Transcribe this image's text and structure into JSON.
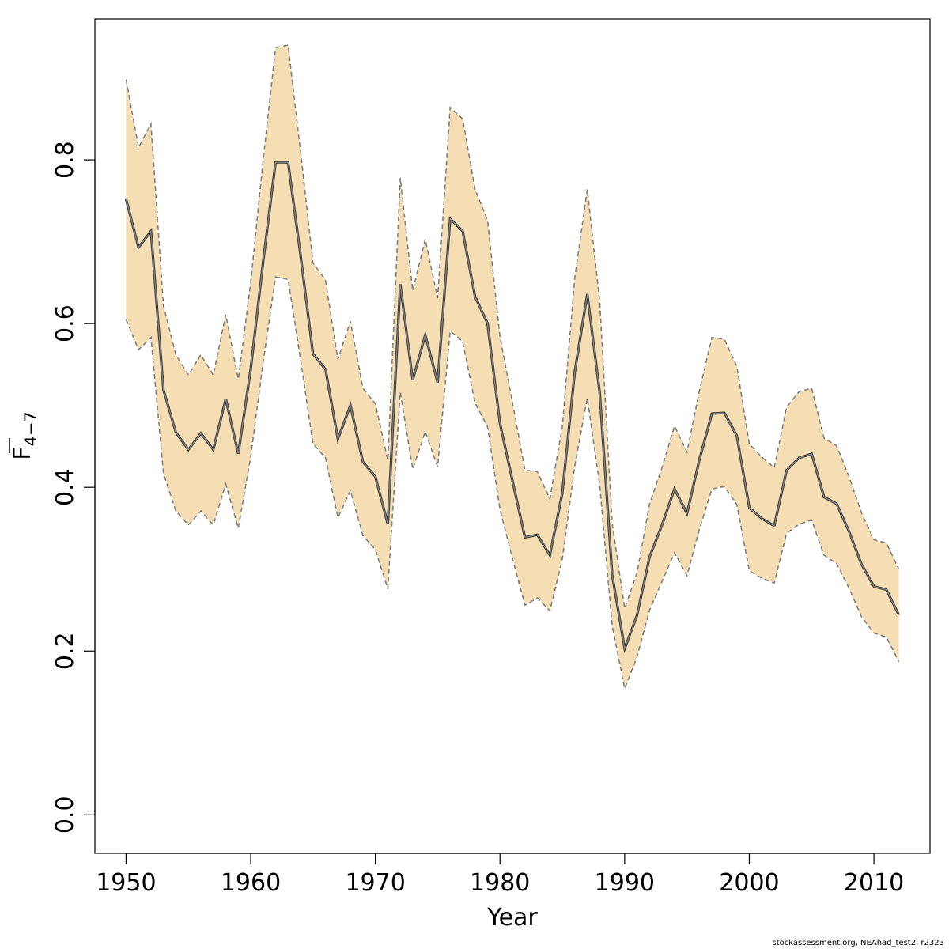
{
  "chart_data": {
    "type": "line",
    "xlabel": "Year",
    "ylabel": {
      "main": "F",
      "sub": "4−7"
    },
    "xlim": [
      1947.5,
      2014.5
    ],
    "ylim": [
      -0.047,
      0.972
    ],
    "xticks": [
      1950,
      1960,
      1970,
      1980,
      1990,
      2000,
      2010
    ],
    "yticks": [
      0.0,
      0.2,
      0.4,
      0.6,
      0.8
    ],
    "grid": false,
    "colors": {
      "band": "#f5deb3",
      "line": "#404040",
      "bounds": "#808080"
    },
    "x": [
      1950,
      1951,
      1952,
      1953,
      1954,
      1955,
      1956,
      1957,
      1958,
      1959,
      1960,
      1961,
      1962,
      1963,
      1964,
      1965,
      1966,
      1967,
      1968,
      1969,
      1970,
      1971,
      1972,
      1973,
      1974,
      1975,
      1976,
      1977,
      1978,
      1979,
      1980,
      1981,
      1982,
      1983,
      1984,
      1985,
      1986,
      1987,
      1988,
      1989,
      1990,
      1991,
      1992,
      1993,
      1994,
      1995,
      1996,
      1997,
      1998,
      1999,
      2000,
      2001,
      2002,
      2003,
      2004,
      2005,
      2006,
      2007,
      2008,
      2009,
      2010,
      2011,
      2012
    ],
    "series": [
      {
        "role": "estimate",
        "values": [
          0.752,
          0.693,
          0.713,
          0.519,
          0.467,
          0.446,
          0.466,
          0.446,
          0.508,
          0.441,
          0.544,
          0.676,
          0.797,
          0.797,
          0.683,
          0.563,
          0.544,
          0.459,
          0.5,
          0.431,
          0.413,
          0.355,
          0.648,
          0.531,
          0.586,
          0.528,
          0.728,
          0.713,
          0.633,
          0.6,
          0.478,
          0.408,
          0.339,
          0.342,
          0.317,
          0.393,
          0.541,
          0.636,
          0.516,
          0.293,
          0.203,
          0.244,
          0.315,
          0.354,
          0.398,
          0.368,
          0.434,
          0.49,
          0.491,
          0.463,
          0.375,
          0.362,
          0.353,
          0.421,
          0.436,
          0.441,
          0.388,
          0.38,
          0.346,
          0.306,
          0.279,
          0.275,
          0.244
        ]
      },
      {
        "role": "lower",
        "values": [
          0.605,
          0.568,
          0.583,
          0.417,
          0.371,
          0.354,
          0.371,
          0.354,
          0.404,
          0.35,
          0.437,
          0.553,
          0.657,
          0.654,
          0.556,
          0.453,
          0.436,
          0.363,
          0.396,
          0.341,
          0.324,
          0.276,
          0.516,
          0.422,
          0.468,
          0.425,
          0.591,
          0.578,
          0.503,
          0.474,
          0.373,
          0.313,
          0.256,
          0.265,
          0.249,
          0.312,
          0.426,
          0.509,
          0.403,
          0.231,
          0.154,
          0.193,
          0.25,
          0.285,
          0.32,
          0.292,
          0.349,
          0.398,
          0.401,
          0.379,
          0.298,
          0.289,
          0.283,
          0.344,
          0.355,
          0.36,
          0.317,
          0.307,
          0.277,
          0.242,
          0.222,
          0.217,
          0.187
        ]
      },
      {
        "role": "upper",
        "values": [
          0.898,
          0.815,
          0.844,
          0.622,
          0.562,
          0.537,
          0.562,
          0.537,
          0.611,
          0.532,
          0.65,
          0.8,
          0.937,
          0.94,
          0.81,
          0.674,
          0.653,
          0.556,
          0.603,
          0.521,
          0.502,
          0.433,
          0.778,
          0.64,
          0.703,
          0.631,
          0.864,
          0.85,
          0.764,
          0.726,
          0.584,
          0.504,
          0.421,
          0.419,
          0.386,
          0.474,
          0.656,
          0.764,
          0.628,
          0.356,
          0.252,
          0.296,
          0.38,
          0.424,
          0.475,
          0.443,
          0.518,
          0.583,
          0.581,
          0.548,
          0.453,
          0.437,
          0.424,
          0.498,
          0.517,
          0.521,
          0.46,
          0.451,
          0.413,
          0.369,
          0.336,
          0.332,
          0.3
        ]
      }
    ]
  },
  "credit": "stockassessment.org, NEAhad_test2, r2323"
}
